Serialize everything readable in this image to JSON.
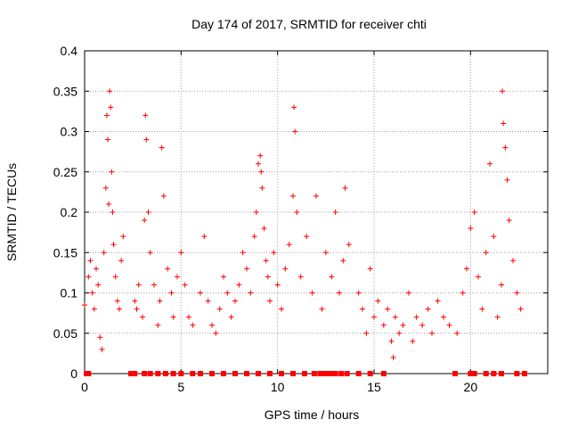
{
  "chart_data": {
    "type": "scatter",
    "title": "Day 174 of 2017, SRMTID for receiver chti",
    "xlabel": "GPS time / hours",
    "ylabel": "SRMTID / TECUs",
    "xlim": [
      0,
      24
    ],
    "ylim": [
      0,
      0.4
    ],
    "xticks": [
      0,
      5,
      10,
      15,
      20
    ],
    "xtick_labels": [
      "0",
      "5",
      "10",
      "15",
      "20"
    ],
    "yticks": [
      0,
      0.05,
      0.1,
      0.15,
      0.2,
      0.25,
      0.3,
      0.35,
      0.4
    ],
    "ytick_labels": [
      "0",
      "0.05",
      "0.1",
      "0.15",
      "0.2",
      "0.25",
      "0.3",
      "0.35",
      "0.4"
    ],
    "grid": true,
    "marker": "plus",
    "color": "#ff0000",
    "series": [
      {
        "name": "SRMTID",
        "x": [
          0.0,
          0.2,
          0.3,
          0.4,
          0.5,
          0.6,
          0.7,
          0.8,
          0.9,
          1.0,
          1.1,
          1.15,
          1.2,
          1.25,
          1.3,
          1.35,
          1.4,
          1.45,
          1.5,
          1.6,
          1.7,
          1.8,
          1.9,
          2.0,
          2.6,
          2.7,
          2.8,
          3.0,
          3.1,
          3.15,
          3.2,
          3.3,
          3.4,
          3.6,
          3.8,
          3.9,
          4.0,
          4.1,
          4.3,
          4.5,
          4.6,
          4.8,
          5.0,
          5.2,
          5.4,
          5.6,
          6.0,
          6.2,
          6.4,
          6.6,
          6.8,
          7.0,
          7.2,
          7.4,
          7.6,
          7.8,
          8.0,
          8.2,
          8.4,
          8.6,
          8.8,
          8.9,
          9.0,
          9.1,
          9.15,
          9.2,
          9.3,
          9.4,
          9.5,
          9.6,
          9.8,
          10.0,
          10.2,
          10.4,
          10.6,
          10.8,
          10.85,
          10.9,
          11.0,
          11.2,
          11.5,
          11.8,
          12.0,
          12.3,
          12.5,
          12.8,
          13.0,
          13.2,
          13.4,
          13.5,
          13.7,
          14.2,
          14.4,
          14.6,
          14.8,
          15.0,
          15.2,
          15.5,
          15.7,
          15.9,
          16.0,
          16.1,
          16.3,
          16.5,
          16.8,
          17.0,
          17.2,
          17.5,
          17.8,
          18.0,
          18.3,
          18.6,
          18.9,
          19.3,
          19.6,
          19.8,
          20.0,
          20.2,
          20.4,
          20.6,
          20.8,
          21.0,
          21.2,
          21.4,
          21.6,
          21.65,
          21.7,
          21.8,
          21.9,
          22.0,
          22.2,
          22.4,
          22.6
        ],
        "y": [
          0.085,
          0.12,
          0.14,
          0.1,
          0.08,
          0.13,
          0.11,
          0.045,
          0.03,
          0.15,
          0.23,
          0.32,
          0.29,
          0.21,
          0.35,
          0.33,
          0.25,
          0.2,
          0.16,
          0.12,
          0.09,
          0.08,
          0.14,
          0.17,
          0.09,
          0.08,
          0.11,
          0.07,
          0.19,
          0.32,
          0.29,
          0.2,
          0.15,
          0.11,
          0.06,
          0.09,
          0.28,
          0.22,
          0.13,
          0.1,
          0.07,
          0.12,
          0.15,
          0.11,
          0.07,
          0.06,
          0.1,
          0.17,
          0.09,
          0.06,
          0.05,
          0.08,
          0.12,
          0.1,
          0.07,
          0.09,
          0.11,
          0.15,
          0.13,
          0.1,
          0.17,
          0.2,
          0.26,
          0.27,
          0.25,
          0.23,
          0.18,
          0.14,
          0.12,
          0.09,
          0.15,
          0.11,
          0.08,
          0.13,
          0.16,
          0.22,
          0.33,
          0.3,
          0.2,
          0.12,
          0.17,
          0.1,
          0.22,
          0.08,
          0.15,
          0.12,
          0.2,
          0.1,
          0.14,
          0.23,
          0.16,
          0.1,
          0.08,
          0.05,
          0.13,
          0.07,
          0.09,
          0.06,
          0.08,
          0.04,
          0.02,
          0.07,
          0.05,
          0.06,
          0.1,
          0.04,
          0.07,
          0.06,
          0.08,
          0.05,
          0.09,
          0.07,
          0.06,
          0.05,
          0.1,
          0.13,
          0.18,
          0.2,
          0.12,
          0.08,
          0.15,
          0.26,
          0.17,
          0.07,
          0.11,
          0.35,
          0.31,
          0.28,
          0.24,
          0.19,
          0.14,
          0.1,
          0.08
        ],
        "gap_markers_x": [
          0.1,
          0.2,
          2.4,
          2.6,
          3.1,
          3.4,
          3.8,
          4.2,
          4.6,
          5.0,
          5.6,
          6.0,
          6.6,
          7.2,
          7.8,
          8.4,
          9.0,
          9.6,
          10.2,
          10.8,
          11.4,
          11.9,
          12.2,
          12.4,
          12.6,
          12.8,
          13.0,
          13.3,
          13.6,
          14.2,
          14.8,
          15.5,
          19.2,
          20.0,
          20.2,
          20.8,
          21.2,
          21.6,
          22.4,
          22.8
        ]
      }
    ]
  }
}
